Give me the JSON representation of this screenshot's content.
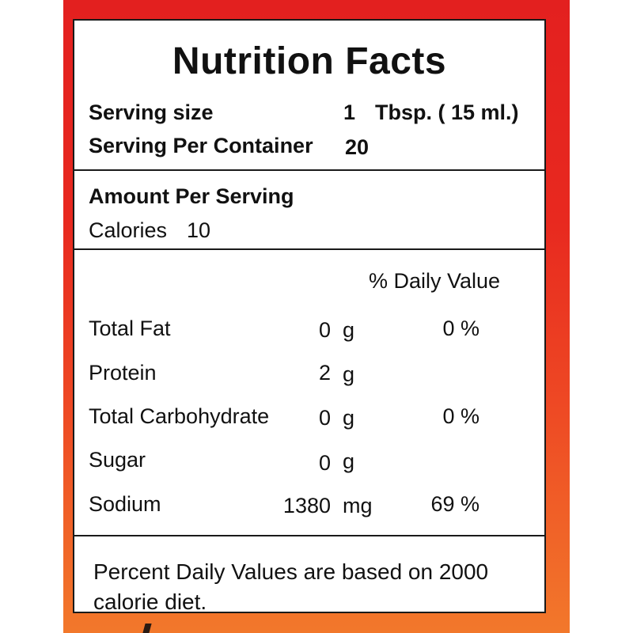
{
  "label": {
    "title": "Nutrition Facts",
    "serving_size": {
      "label": "Serving size",
      "value": "1",
      "unit": "Tbsp. ( 15 ml.)"
    },
    "servings_per_container": {
      "label": "Serving Per Container",
      "value": "20"
    },
    "amount_per_serving": "Amount Per Serving",
    "calories": {
      "label": "Calories",
      "value": "10"
    },
    "daily_value_header": "% Daily Value",
    "nutrients": [
      {
        "name": "Total Fat",
        "amount": "0",
        "unit": "g",
        "dv": "0 %"
      },
      {
        "name": "Protein",
        "amount": "2",
        "unit": "g",
        "dv": ""
      },
      {
        "name": "Total Carbohydrate",
        "amount": "0",
        "unit": "g",
        "dv": "0 %"
      },
      {
        "name": "Sugar",
        "amount": "0",
        "unit": "g",
        "dv": ""
      },
      {
        "name": "Sodium",
        "amount": "1380",
        "unit": "mg",
        "dv": "69 %"
      }
    ],
    "footnote": "Percent Daily Values are based on 2000 calorie diet."
  },
  "colors": {
    "background_top": "#e3201f",
    "background_bottom": "#f2782b",
    "border": "#1a1a1a"
  }
}
